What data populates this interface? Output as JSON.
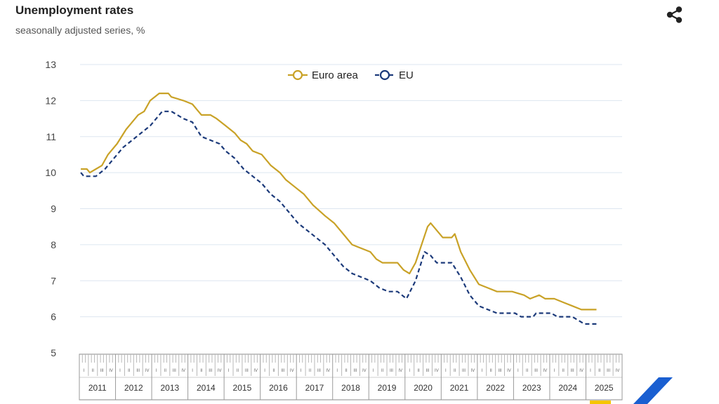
{
  "header": {
    "title": "Unemployment rates",
    "subtitle": "seasonally adjusted series, %",
    "share_icon": "share-icon"
  },
  "colors": {
    "euro_area": "#c9a227",
    "eu": "#1c3a7a",
    "grid": "#dde6f0",
    "axis_box": "#8a8a8a",
    "accent_blue": "#1a5fd1",
    "accent_yellow": "#f5c500"
  },
  "chart_data": {
    "type": "line",
    "title": "Unemployment rates",
    "subtitle": "seasonally adjusted series, %",
    "xlabel": "",
    "ylabel": "",
    "ylim": [
      5,
      13
    ],
    "yticks": [
      "5",
      "6",
      "7",
      "8",
      "9",
      "10",
      "11",
      "12",
      "13"
    ],
    "grid": true,
    "legend_position": "top-center",
    "years": [
      "2011",
      "2012",
      "2013",
      "2014",
      "2015",
      "2016",
      "2017",
      "2018",
      "2019",
      "2020",
      "2021",
      "2022",
      "2023",
      "2024",
      "2025"
    ],
    "quarters": [
      "I",
      "II",
      "III",
      "IV"
    ],
    "series": [
      {
        "name": "Euro area",
        "style": "solid",
        "points": [
          [
            "2011-01",
            10.1
          ],
          [
            "2011-03",
            10.1
          ],
          [
            "2011-04",
            10.0
          ],
          [
            "2011-06",
            10.1
          ],
          [
            "2011-08",
            10.2
          ],
          [
            "2011-10",
            10.5
          ],
          [
            "2012-01",
            10.8
          ],
          [
            "2012-04",
            11.2
          ],
          [
            "2012-06",
            11.4
          ],
          [
            "2012-08",
            11.6
          ],
          [
            "2012-10",
            11.7
          ],
          [
            "2012-12",
            12.0
          ],
          [
            "2013-03",
            12.2
          ],
          [
            "2013-06",
            12.2
          ],
          [
            "2013-07",
            12.1
          ],
          [
            "2013-11",
            12.0
          ],
          [
            "2014-02",
            11.9
          ],
          [
            "2014-04",
            11.7
          ],
          [
            "2014-05",
            11.6
          ],
          [
            "2014-08",
            11.6
          ],
          [
            "2014-10",
            11.5
          ],
          [
            "2015-01",
            11.3
          ],
          [
            "2015-04",
            11.1
          ],
          [
            "2015-06",
            10.9
          ],
          [
            "2015-08",
            10.8
          ],
          [
            "2015-10",
            10.6
          ],
          [
            "2016-01",
            10.5
          ],
          [
            "2016-04",
            10.2
          ],
          [
            "2016-07",
            10.0
          ],
          [
            "2016-09",
            9.8
          ],
          [
            "2016-12",
            9.6
          ],
          [
            "2017-03",
            9.4
          ],
          [
            "2017-06",
            9.1
          ],
          [
            "2017-10",
            8.8
          ],
          [
            "2018-01",
            8.6
          ],
          [
            "2018-04",
            8.3
          ],
          [
            "2018-07",
            8.0
          ],
          [
            "2018-10",
            7.9
          ],
          [
            "2019-01",
            7.8
          ],
          [
            "2019-03",
            7.6
          ],
          [
            "2019-05",
            7.5
          ],
          [
            "2019-08",
            7.5
          ],
          [
            "2019-10",
            7.5
          ],
          [
            "2019-12",
            7.3
          ],
          [
            "2020-02",
            7.2
          ],
          [
            "2020-04",
            7.5
          ],
          [
            "2020-06",
            8.0
          ],
          [
            "2020-08",
            8.5
          ],
          [
            "2020-09",
            8.6
          ],
          [
            "2020-11",
            8.4
          ],
          [
            "2021-01",
            8.2
          ],
          [
            "2021-04",
            8.2
          ],
          [
            "2021-05",
            8.3
          ],
          [
            "2021-07",
            7.8
          ],
          [
            "2021-10",
            7.3
          ],
          [
            "2022-01",
            6.9
          ],
          [
            "2022-04",
            6.8
          ],
          [
            "2022-07",
            6.7
          ],
          [
            "2022-12",
            6.7
          ],
          [
            "2023-04",
            6.6
          ],
          [
            "2023-06",
            6.5
          ],
          [
            "2023-09",
            6.6
          ],
          [
            "2023-11",
            6.5
          ],
          [
            "2024-02",
            6.5
          ],
          [
            "2024-05",
            6.4
          ],
          [
            "2024-08",
            6.3
          ],
          [
            "2024-11",
            6.2
          ],
          [
            "2025-04",
            6.2
          ]
        ]
      },
      {
        "name": "EU",
        "style": "dashed",
        "points": [
          [
            "2011-01",
            10.0
          ],
          [
            "2011-02",
            9.9
          ],
          [
            "2011-06",
            9.9
          ],
          [
            "2011-09",
            10.1
          ],
          [
            "2011-12",
            10.4
          ],
          [
            "2012-03",
            10.7
          ],
          [
            "2012-06",
            10.9
          ],
          [
            "2012-09",
            11.1
          ],
          [
            "2012-12",
            11.3
          ],
          [
            "2013-02",
            11.5
          ],
          [
            "2013-04",
            11.7
          ],
          [
            "2013-07",
            11.7
          ],
          [
            "2013-09",
            11.6
          ],
          [
            "2013-11",
            11.5
          ],
          [
            "2014-02",
            11.4
          ],
          [
            "2014-05",
            11.0
          ],
          [
            "2014-08",
            10.9
          ],
          [
            "2014-11",
            10.8
          ],
          [
            "2015-01",
            10.6
          ],
          [
            "2015-04",
            10.4
          ],
          [
            "2015-07",
            10.1
          ],
          [
            "2015-10",
            9.9
          ],
          [
            "2016-01",
            9.7
          ],
          [
            "2016-04",
            9.4
          ],
          [
            "2016-07",
            9.2
          ],
          [
            "2016-10",
            8.9
          ],
          [
            "2017-01",
            8.6
          ],
          [
            "2017-04",
            8.4
          ],
          [
            "2017-07",
            8.2
          ],
          [
            "2017-10",
            8.0
          ],
          [
            "2018-01",
            7.7
          ],
          [
            "2018-04",
            7.4
          ],
          [
            "2018-07",
            7.2
          ],
          [
            "2018-10",
            7.1
          ],
          [
            "2019-01",
            7.0
          ],
          [
            "2019-04",
            6.8
          ],
          [
            "2019-07",
            6.7
          ],
          [
            "2019-10",
            6.7
          ],
          [
            "2020-01",
            6.5
          ],
          [
            "2020-04",
            7.0
          ],
          [
            "2020-07",
            7.8
          ],
          [
            "2020-09",
            7.7
          ],
          [
            "2020-11",
            7.5
          ],
          [
            "2021-04",
            7.5
          ],
          [
            "2021-07",
            7.1
          ],
          [
            "2021-10",
            6.6
          ],
          [
            "2022-01",
            6.3
          ],
          [
            "2022-04",
            6.2
          ],
          [
            "2022-07",
            6.1
          ],
          [
            "2023-01",
            6.1
          ],
          [
            "2023-03",
            6.0
          ],
          [
            "2023-07",
            6.0
          ],
          [
            "2023-08",
            6.1
          ],
          [
            "2024-01",
            6.1
          ],
          [
            "2024-03",
            6.0
          ],
          [
            "2024-08",
            6.0
          ],
          [
            "2024-10",
            5.9
          ],
          [
            "2024-12",
            5.8
          ],
          [
            "2025-04",
            5.8
          ]
        ]
      }
    ]
  }
}
